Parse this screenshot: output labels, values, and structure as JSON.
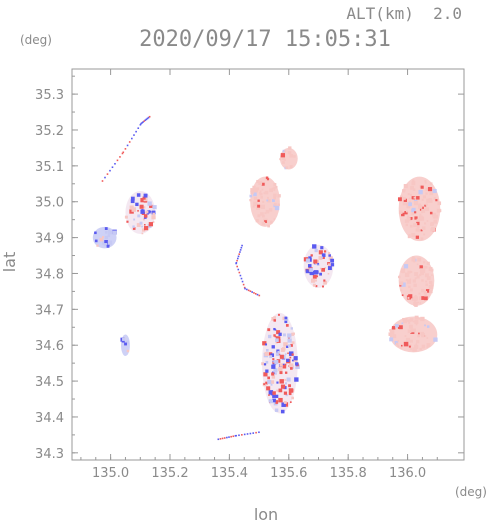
{
  "header": {
    "altitude_label": "ALT(km)  2.0",
    "timestamp": "2020/09/17 15:05:31"
  },
  "colors": {
    "frame": "#999999",
    "text": "#8a8a8a",
    "positive_red": "#f05a5a",
    "negative_blue": "#5a5af0",
    "light_red": "#f7c7c4",
    "light_blue": "#c6c9f4"
  },
  "chart_data": {
    "type": "heatmap",
    "title": "2020/09/17 15:05:31",
    "subtitle": "ALT(km)  2.0",
    "xlabel": "lon",
    "ylabel": "lat",
    "x_unit": "(deg)",
    "y_unit": "(deg)",
    "xlim": [
      134.87,
      136.19
    ],
    "ylim": [
      34.28,
      35.37
    ],
    "x_ticks": [
      135.0,
      135.2,
      135.4,
      135.6,
      135.8,
      136.0
    ],
    "x_tick_labels": [
      "135.0",
      "135.2",
      "135.4",
      "135.6",
      "135.8",
      "136.0"
    ],
    "y_ticks": [
      34.3,
      34.4,
      34.5,
      34.6,
      34.7,
      34.8,
      34.9,
      35.0,
      35.1,
      35.2,
      35.3
    ],
    "y_tick_labels": [
      "34.3",
      "34.4",
      "34.5",
      "34.6",
      "34.7",
      "34.8",
      "34.9",
      "35.0",
      "35.1",
      "35.2",
      "35.3"
    ],
    "grid": false,
    "colorscale": "diverging blue (negative) - white - red (positive)",
    "echo_regions": [
      {
        "name": "east-large-upper",
        "lon": 136.04,
        "lat": 34.98,
        "rx": 0.07,
        "ry": 0.09,
        "sign": "positive"
      },
      {
        "name": "east-large-middle",
        "lon": 136.03,
        "lat": 34.78,
        "rx": 0.06,
        "ry": 0.07,
        "sign": "positive"
      },
      {
        "name": "east-large-lower",
        "lon": 136.02,
        "lat": 34.63,
        "rx": 0.08,
        "ry": 0.05,
        "sign": "positive"
      },
      {
        "name": "center-north",
        "lon": 135.52,
        "lat": 35.0,
        "rx": 0.05,
        "ry": 0.07,
        "sign": "positive"
      },
      {
        "name": "center-north-top",
        "lon": 135.6,
        "lat": 35.12,
        "rx": 0.03,
        "ry": 0.03,
        "sign": "positive"
      },
      {
        "name": "center-south",
        "lon": 135.57,
        "lat": 34.55,
        "rx": 0.06,
        "ry": 0.14,
        "sign": "mixed"
      },
      {
        "name": "center-east-ring",
        "lon": 135.7,
        "lat": 34.82,
        "rx": 0.05,
        "ry": 0.06,
        "sign": "mixed"
      },
      {
        "name": "northwest-cluster",
        "lon": 135.1,
        "lat": 34.97,
        "rx": 0.05,
        "ry": 0.06,
        "sign": "mixed"
      },
      {
        "name": "west-patch",
        "lon": 134.98,
        "lat": 34.9,
        "rx": 0.04,
        "ry": 0.03,
        "sign": "negative"
      },
      {
        "name": "southwest-patch",
        "lon": 135.05,
        "lat": 34.6,
        "rx": 0.015,
        "ry": 0.03,
        "sign": "negative"
      }
    ]
  }
}
